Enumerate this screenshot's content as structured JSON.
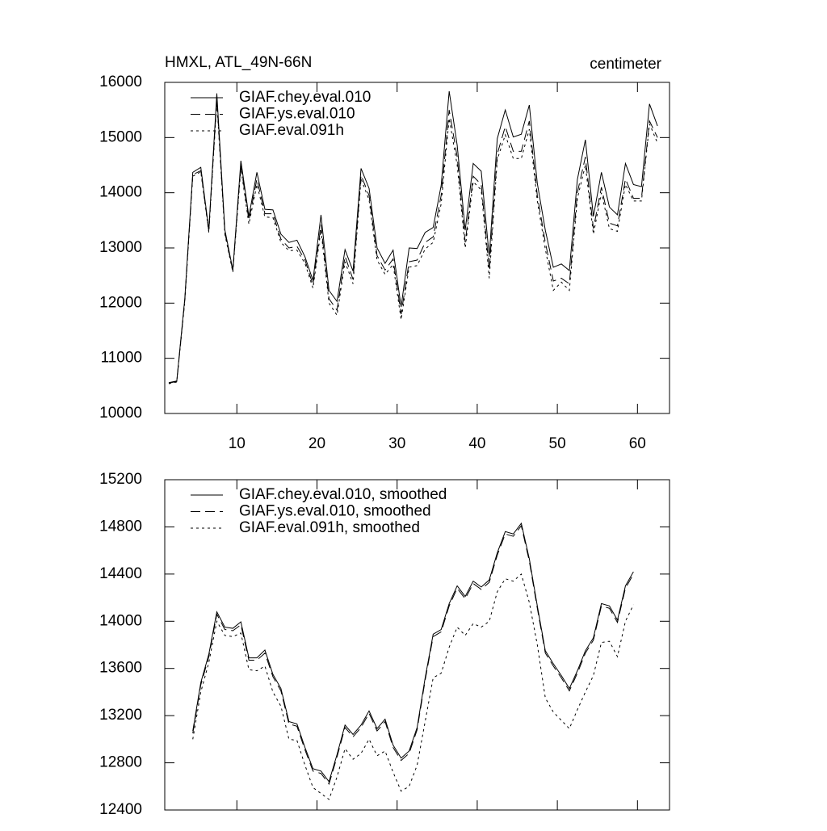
{
  "chart_data": [
    {
      "type": "line",
      "title": "HMXL, ATL_49N-66N",
      "units": "centimeter",
      "x": [
        1.5,
        2.5,
        3.5,
        4.5,
        5.5,
        6.5,
        7.5,
        8.5,
        9.5,
        10.5,
        11.5,
        12.5,
        13.5,
        14.5,
        15.5,
        16.5,
        17.5,
        18.5,
        19.5,
        20.5,
        21.5,
        22.5,
        23.5,
        24.5,
        25.5,
        26.5,
        27.5,
        28.5,
        29.5,
        30.5,
        31.5,
        32.5,
        33.5,
        34.5,
        35.5,
        36.5,
        37.5,
        38.5,
        39.5,
        40.5,
        41.5,
        42.5,
        43.5,
        44.5,
        45.5,
        46.5,
        47.5,
        48.5,
        49.5,
        50.5,
        51.5,
        52.5,
        53.5,
        54.5,
        55.5,
        56.5,
        57.5,
        58.5,
        59.5,
        60.5,
        61.5,
        62.5
      ],
      "series": [
        {
          "name": "GIAF.chey.eval.010",
          "color": "#000000",
          "style": "solid",
          "values": [
            10560,
            10590,
            12080,
            14370,
            14460,
            13330,
            15800,
            13330,
            12600,
            14580,
            13570,
            14370,
            13700,
            13690,
            13250,
            13100,
            13140,
            12840,
            12410,
            13600,
            12230,
            12030,
            12970,
            12580,
            14440,
            14080,
            13000,
            12720,
            12960,
            11930,
            13000,
            12990,
            13280,
            13370,
            14130,
            15840,
            14860,
            13320,
            14530,
            14390,
            12840,
            14980,
            15500,
            15010,
            15060,
            15590,
            14170,
            13320,
            12650,
            12710,
            12590,
            14240,
            14960,
            13570,
            14370,
            13740,
            13600,
            14530,
            14150,
            14110,
            15610,
            15210
          ]
        },
        {
          "name": "GIAF.ys.eval.010",
          "color": "#000000",
          "style": "dashed",
          "values": [
            10550,
            10580,
            12050,
            14330,
            14400,
            13300,
            15700,
            13280,
            12580,
            14500,
            13500,
            14250,
            13620,
            13620,
            13160,
            13000,
            13030,
            12780,
            12330,
            13420,
            12080,
            11870,
            12850,
            12430,
            14320,
            13950,
            12860,
            12600,
            12800,
            11800,
            12750,
            12780,
            13100,
            13200,
            13950,
            15500,
            14650,
            13100,
            14300,
            14150,
            12600,
            14700,
            15200,
            14750,
            14750,
            15300,
            13950,
            13100,
            12400,
            12450,
            12350,
            14000,
            14650,
            13350,
            14100,
            13450,
            13400,
            14250,
            13900,
            13900,
            15300,
            15000
          ]
        },
        {
          "name": "GIAF.eval.091h",
          "color": "#000000",
          "style": "dotted",
          "values": [
            10540,
            10570,
            12020,
            14300,
            14380,
            13280,
            15650,
            13250,
            12560,
            14450,
            13430,
            14150,
            13560,
            13550,
            13100,
            12950,
            12960,
            12720,
            12270,
            13330,
            12000,
            11780,
            12750,
            12350,
            14250,
            13870,
            12780,
            12520,
            12700,
            11700,
            12650,
            12680,
            12980,
            13100,
            13800,
            15350,
            14500,
            13000,
            14200,
            14050,
            12450,
            14600,
            15050,
            14620,
            14620,
            15150,
            13850,
            12980,
            12230,
            12380,
            12230,
            13900,
            14500,
            13250,
            14000,
            13350,
            13300,
            14150,
            13850,
            13850,
            15250,
            14900
          ]
        }
      ],
      "xlim": [
        1,
        64
      ],
      "xticks": [
        10,
        20,
        30,
        40,
        50,
        60
      ],
      "ylim": [
        10000,
        16000
      ],
      "yticks": [
        10000,
        11000,
        12000,
        13000,
        14000,
        15000,
        16000
      ]
    },
    {
      "type": "line",
      "x": [
        4.5,
        5.5,
        6.5,
        7.5,
        8.5,
        9.5,
        10.5,
        11.5,
        12.5,
        13.5,
        14.5,
        15.5,
        16.5,
        17.5,
        18.5,
        19.5,
        20.5,
        21.5,
        22.5,
        23.5,
        24.5,
        25.5,
        26.5,
        27.5,
        28.5,
        29.5,
        30.5,
        31.5,
        32.5,
        33.5,
        34.5,
        35.5,
        36.5,
        37.5,
        38.5,
        39.5,
        40.5,
        41.5,
        42.5,
        43.5,
        44.5,
        45.5,
        46.5,
        47.5,
        48.5,
        49.5,
        50.5,
        51.5,
        52.5,
        53.5,
        54.5,
        55.5,
        56.5,
        57.5,
        58.5,
        59.5
      ],
      "series": [
        {
          "name": "GIAF.chey.eval.010, smoothed",
          "color": "#000000",
          "style": "solid",
          "values": [
            13070,
            13480,
            13720,
            14080,
            13950,
            13940,
            13995,
            13690,
            13690,
            13756,
            13550,
            13430,
            13150,
            13130,
            12930,
            12750,
            12730,
            12640,
            12870,
            13120,
            13040,
            13120,
            13240,
            13090,
            13170,
            12950,
            12840,
            12900,
            13100,
            13520,
            13890,
            13930,
            14150,
            14300,
            14210,
            14340,
            14290,
            14350,
            14580,
            14760,
            14740,
            14830,
            14530,
            14130,
            13750,
            13640,
            13540,
            13430,
            13580,
            13750,
            13860,
            14150,
            14130,
            14010,
            14300,
            14420
          ]
        },
        {
          "name": "GIAF.ys.eval.010, smoothed",
          "color": "#000000",
          "style": "dashed",
          "values": [
            13050,
            13460,
            13700,
            14060,
            13930,
            13920,
            13970,
            13670,
            13670,
            13730,
            13530,
            13410,
            13130,
            13110,
            12910,
            12730,
            12710,
            12620,
            12850,
            13100,
            13020,
            13100,
            13220,
            13070,
            13150,
            12930,
            12820,
            12880,
            13080,
            13500,
            13870,
            13910,
            14130,
            14280,
            14190,
            14320,
            14270,
            14330,
            14560,
            14740,
            14720,
            14810,
            14510,
            14110,
            13730,
            13620,
            13520,
            13410,
            13560,
            13730,
            13840,
            14130,
            14110,
            13990,
            14280,
            14400
          ]
        },
        {
          "name": "GIAF.eval.091h, smoothed",
          "color": "#000000",
          "style": "dotted",
          "values": [
            13000,
            13400,
            13650,
            14000,
            13880,
            13870,
            13900,
            13590,
            13580,
            13620,
            13400,
            13280,
            13000,
            12990,
            12780,
            12590,
            12540,
            12490,
            12680,
            12920,
            12830,
            12880,
            13000,
            12860,
            12900,
            12720,
            12560,
            12600,
            12780,
            13150,
            13520,
            13560,
            13780,
            13950,
            13880,
            13980,
            13950,
            14000,
            14250,
            14360,
            14340,
            14400,
            14160,
            13800,
            13350,
            13230,
            13160,
            13090,
            13250,
            13400,
            13540,
            13820,
            13830,
            13700,
            14000,
            14140
          ]
        }
      ],
      "xlim": [
        1,
        64
      ],
      "xticks": [
        10,
        20,
        30,
        40,
        50,
        60
      ],
      "ylim": [
        12400,
        15200
      ],
      "yticks": [
        12400,
        12800,
        13200,
        13600,
        14000,
        14400,
        14800,
        15200
      ]
    }
  ]
}
